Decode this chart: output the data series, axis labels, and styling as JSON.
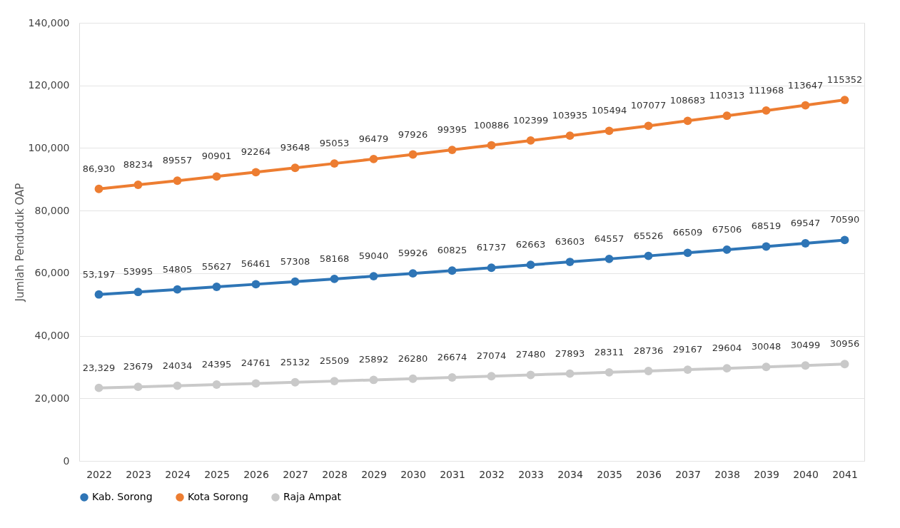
{
  "chart_data": {
    "type": "line",
    "ylabel": "Jumlah Penduduk OAP",
    "categories": [
      "2022",
      "2023",
      "2024",
      "2025",
      "2026",
      "2027",
      "2028",
      "2029",
      "2030",
      "2031",
      "2032",
      "2033",
      "2034",
      "2035",
      "2036",
      "2037",
      "2038",
      "2039",
      "2040",
      "2041"
    ],
    "series": [
      {
        "name": "Kab. Sorong",
        "color": "#2e75b6",
        "values": [
          53197,
          53995,
          54805,
          55627,
          56461,
          57308,
          58168,
          59040,
          59926,
          60825,
          61737,
          62663,
          63603,
          64557,
          65526,
          66509,
          67506,
          68519,
          69547,
          70590
        ],
        "value_labels": [
          "53,197",
          "53995",
          "54805",
          "55627",
          "56461",
          "57308",
          "58168",
          "59040",
          "59926",
          "60825",
          "61737",
          "62663",
          "63603",
          "64557",
          "65526",
          "66509",
          "67506",
          "68519",
          "69547",
          "70590"
        ]
      },
      {
        "name": "Kota Sorong",
        "color": "#ed7d31",
        "values": [
          86930,
          88234,
          89557,
          90901,
          92264,
          93648,
          95053,
          96479,
          97926,
          99395,
          100886,
          102399,
          103935,
          105494,
          107077,
          108683,
          110313,
          111968,
          113647,
          115352
        ],
        "value_labels": [
          "86,930",
          "88234",
          "89557",
          "90901",
          "92264",
          "93648",
          "95053",
          "96479",
          "97926",
          "99395",
          "100886",
          "102399",
          "103935",
          "105494",
          "107077",
          "108683",
          "110313",
          "111968",
          "113647",
          "115352"
        ]
      },
      {
        "name": "Raja Ampat",
        "color": "#c9c9c9",
        "values": [
          23329,
          23679,
          24034,
          24395,
          24761,
          25132,
          25509,
          25892,
          26280,
          26674,
          27074,
          27480,
          27893,
          28311,
          28736,
          29167,
          29604,
          30048,
          30499,
          30956
        ],
        "value_labels": [
          "23,329",
          "23679",
          "24034",
          "24395",
          "24761",
          "25132",
          "25509",
          "25892",
          "26280",
          "26674",
          "27074",
          "27480",
          "27893",
          "28311",
          "28736",
          "29167",
          "29604",
          "30048",
          "30499",
          "30956"
        ]
      }
    ],
    "ylim": [
      0,
      140000
    ],
    "yticks": [
      0,
      {
        "value": 20000,
        "label": "20,000"
      },
      {
        "value": 40000,
        "label": "40,000"
      },
      {
        "value": 60000,
        "label": "60,000"
      },
      {
        "value": 80000,
        "label": "80,000"
      },
      {
        "value": 100000,
        "label": "100,000"
      },
      {
        "value": 120000,
        "label": "120,000"
      },
      {
        "value": 140000,
        "label": "140,000"
      }
    ],
    "grid": "y",
    "legend": "bottom",
    "marker": "circle",
    "line_style": "solid"
  }
}
